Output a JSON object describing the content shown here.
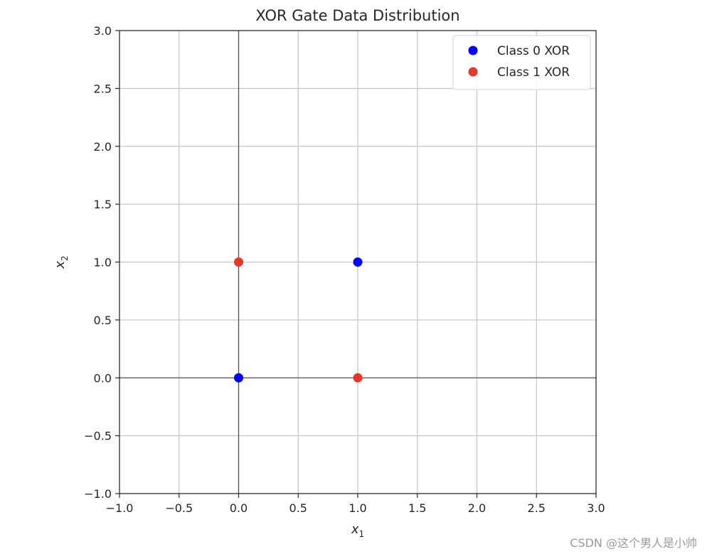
{
  "chart_data": {
    "type": "scatter",
    "title": "XOR Gate Data Distribution",
    "xlabel": "x",
    "xlabel_sub": "1",
    "ylabel": "x",
    "ylabel_sub": "2",
    "xlim": [
      -1.0,
      3.0
    ],
    "ylim": [
      -1.0,
      3.0
    ],
    "xticks": [
      -1.0,
      -0.5,
      0.0,
      0.5,
      1.0,
      1.5,
      2.0,
      2.5,
      3.0
    ],
    "yticks": [
      -1.0,
      -0.5,
      0.0,
      0.5,
      1.0,
      1.5,
      2.0,
      2.5,
      3.0
    ],
    "xtick_labels": [
      "−1.0",
      "−0.5",
      "0.0",
      "0.5",
      "1.0",
      "1.5",
      "2.0",
      "2.5",
      "3.0"
    ],
    "ytick_labels": [
      "−1.0",
      "−0.5",
      "0.0",
      "0.5",
      "1.0",
      "1.5",
      "2.0",
      "2.5",
      "3.0"
    ],
    "grid": true,
    "reference_lines": {
      "x": 0,
      "y": 0
    },
    "legend_position": "top-right",
    "series": [
      {
        "name": "Class 0 XOR",
        "color": "#0000ff",
        "points": [
          [
            0,
            0
          ],
          [
            1,
            1
          ]
        ]
      },
      {
        "name": "Class 1 XOR",
        "color": "#e8372a",
        "points": [
          [
            0,
            1
          ],
          [
            1,
            0
          ]
        ]
      }
    ]
  },
  "watermark": "CSDN @这个男人是小帅"
}
